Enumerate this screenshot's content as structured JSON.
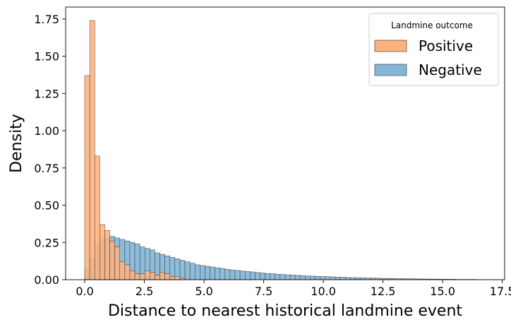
{
  "chart_data": {
    "type": "bar",
    "title": "",
    "xlabel": "Distance to nearest historical landmine event",
    "ylabel": "Density",
    "xlim": [
      -0.8,
      17.6
    ],
    "ylim": [
      0,
      1.83
    ],
    "x_ticks": [
      0.0,
      2.5,
      5.0,
      7.5,
      10.0,
      12.5,
      15.0,
      17.5
    ],
    "x_tick_labels": [
      "0.0",
      "2.5",
      "5.0",
      "7.5",
      "10.0",
      "12.5",
      "15.0",
      "17.5"
    ],
    "y_ticks": [
      0.0,
      0.25,
      0.5,
      0.75,
      1.0,
      1.25,
      1.5,
      1.75
    ],
    "y_tick_labels": [
      "0.00",
      "0.25",
      "0.50",
      "0.75",
      "1.00",
      "1.25",
      "1.50",
      "1.75"
    ],
    "grid": false,
    "bin_start": 0.0,
    "bin_width": 0.21,
    "legend": {
      "title": "Landmine outcome",
      "placement": "top-right",
      "entries": [
        {
          "name": "Positive",
          "color": "#ffb27c"
        },
        {
          "name": "Negative",
          "color": "#84b6d8"
        }
      ]
    },
    "series": [
      {
        "name": "Positive",
        "color": "#ffb27c",
        "values": [
          1.37,
          1.74,
          0.83,
          0.37,
          0.33,
          0.26,
          0.22,
          0.12,
          0.1,
          0.06,
          0.04,
          0.04,
          0.06,
          0.05,
          0.03,
          0.05,
          0.04,
          0.02,
          0.02,
          0.01
        ]
      },
      {
        "name": "Negative",
        "color": "#84b6d8",
        "values": [
          0.07,
          0.14,
          0.24,
          0.28,
          0.28,
          0.29,
          0.28,
          0.27,
          0.26,
          0.25,
          0.24,
          0.22,
          0.21,
          0.2,
          0.18,
          0.17,
          0.16,
          0.15,
          0.14,
          0.13,
          0.12,
          0.11,
          0.1,
          0.095,
          0.09,
          0.085,
          0.08,
          0.075,
          0.07,
          0.065,
          0.062,
          0.058,
          0.055,
          0.052,
          0.048,
          0.045,
          0.042,
          0.04,
          0.037,
          0.035,
          0.033,
          0.031,
          0.029,
          0.027,
          0.025,
          0.024,
          0.022,
          0.021,
          0.02,
          0.019,
          0.017,
          0.016,
          0.015,
          0.014,
          0.013,
          0.012,
          0.011,
          0.011,
          0.01,
          0.009,
          0.009,
          0.008,
          0.007,
          0.007,
          0.006,
          0.006,
          0.005,
          0.005,
          0.004,
          0.004,
          0.004,
          0.003,
          0.003,
          0.003,
          0.002,
          0.002,
          0.002,
          0.002,
          0.001,
          0.001,
          0.001,
          0.001,
          0.001
        ]
      }
    ]
  }
}
